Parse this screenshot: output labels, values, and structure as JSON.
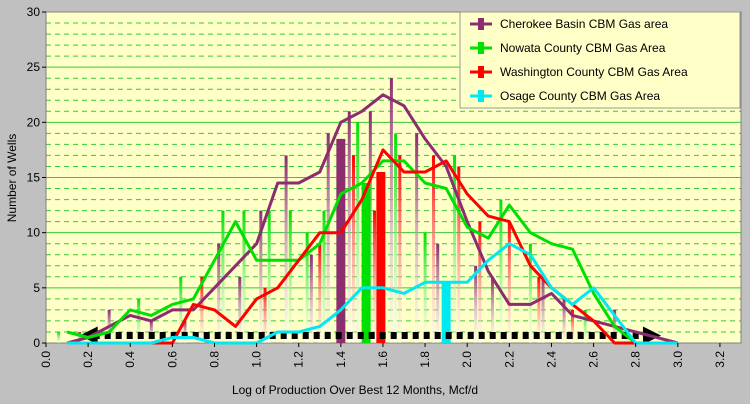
{
  "chart_data": {
    "type": "line",
    "xlabel": "Log of Production Over Best 12 Months, Mcf/d",
    "ylabel": "Number of Wells",
    "xlim": [
      0.0,
      3.3
    ],
    "ylim": [
      0,
      30
    ],
    "x_ticks": [
      "0.0",
      "0.2",
      "0.4",
      "0.6",
      "0.8",
      "1.0",
      "1.2",
      "1.4",
      "1.6",
      "1.8",
      "2.0",
      "2.2",
      "2.4",
      "2.6",
      "2.8",
      "3.0",
      "3.2"
    ],
    "y_ticks": [
      "0",
      "5",
      "10",
      "15",
      "20",
      "25",
      "30"
    ],
    "grid": "horizontal major solid green, minor dashed green",
    "legend_position": "top-right",
    "background_color": "#ffffc8",
    "series": [
      {
        "name": "Cherokee Basin CBM Gas area",
        "color": "#8b2d6e",
        "x": [
          0.1,
          0.2,
          0.3,
          0.4,
          0.5,
          0.6,
          0.7,
          0.8,
          0.9,
          1.0,
          1.1,
          1.2,
          1.3,
          1.4,
          1.5,
          1.6,
          1.7,
          1.8,
          1.9,
          2.0,
          2.1,
          2.2,
          2.3,
          2.4,
          2.5,
          2.6,
          2.7,
          2.8,
          2.9,
          3.0
        ],
        "y": [
          0,
          0.5,
          1.5,
          2.5,
          2,
          3,
          3,
          5,
          7,
          9,
          14.5,
          14.5,
          15.5,
          20,
          21,
          22.5,
          21.5,
          18.5,
          16,
          11,
          6.5,
          3.5,
          3.5,
          4.5,
          2.5,
          2,
          1.5,
          1,
          0.5,
          0
        ]
      },
      {
        "name": "Nowata County CBM Gas Area",
        "color": "#00e000",
        "x": [
          0.1,
          0.2,
          0.3,
          0.4,
          0.5,
          0.6,
          0.7,
          0.8,
          0.9,
          1.0,
          1.1,
          1.2,
          1.3,
          1.4,
          1.5,
          1.6,
          1.7,
          1.8,
          1.9,
          2.0,
          2.1,
          2.2,
          2.3,
          2.4,
          2.5,
          2.6,
          2.7,
          2.8,
          2.9,
          3.0
        ],
        "y": [
          1,
          0.5,
          1,
          3,
          2.5,
          3.5,
          4,
          7.5,
          11,
          7.5,
          7.5,
          7.5,
          9,
          13.5,
          14.5,
          16.5,
          16.5,
          14.5,
          14,
          10.5,
          9.5,
          12.5,
          10,
          9,
          8.5,
          4.5,
          1.5,
          0,
          0,
          0
        ]
      },
      {
        "name": "Washington County CBM Gas Area",
        "color": "#ff0000",
        "x": [
          0.1,
          0.2,
          0.3,
          0.4,
          0.5,
          0.6,
          0.7,
          0.8,
          0.9,
          1.0,
          1.1,
          1.2,
          1.3,
          1.4,
          1.5,
          1.6,
          1.7,
          1.8,
          1.9,
          2.0,
          2.1,
          2.2,
          2.3,
          2.4,
          2.5,
          2.6,
          2.7,
          2.8,
          2.9,
          3.0
        ],
        "y": [
          0,
          0,
          0,
          0,
          0,
          0,
          3.5,
          3,
          1.5,
          4,
          5,
          7.5,
          10,
          10,
          13,
          17.5,
          15.5,
          15.5,
          16.5,
          13.5,
          11.5,
          11,
          7,
          5,
          3.5,
          2,
          0,
          0,
          0,
          0
        ]
      },
      {
        "name": "Osage County CBM Gas Area",
        "color": "#00e8f0",
        "x": [
          0.1,
          0.2,
          0.3,
          0.4,
          0.5,
          0.6,
          0.7,
          0.8,
          0.9,
          1.0,
          1.1,
          1.2,
          1.3,
          1.4,
          1.5,
          1.6,
          1.7,
          1.8,
          1.9,
          2.0,
          2.1,
          2.2,
          2.3,
          2.4,
          2.5,
          2.6,
          2.7,
          2.8,
          2.9,
          3.0
        ],
        "y": [
          0,
          0,
          0,
          0,
          0,
          0.5,
          0.5,
          0,
          0,
          0,
          1,
          1,
          1.5,
          3,
          5,
          5,
          4.5,
          5.5,
          5.5,
          5.5,
          7.5,
          9,
          8,
          5,
          3.5,
          5,
          2.5,
          0,
          0,
          0
        ]
      }
    ],
    "histogram_bars": [
      {
        "x": 0.06,
        "y": 1,
        "color": "#00e000"
      },
      {
        "x": 0.16,
        "y": 1,
        "color": "#8b2d6e"
      },
      {
        "x": 0.3,
        "y": 3,
        "color": "#8b2d6e"
      },
      {
        "x": 0.44,
        "y": 4,
        "color": "#00e000"
      },
      {
        "x": 0.5,
        "y": 2,
        "color": "#8b2d6e"
      },
      {
        "x": 0.64,
        "y": 6,
        "color": "#00e000"
      },
      {
        "x": 0.66,
        "y": 2,
        "color": "#8b2d6e"
      },
      {
        "x": 0.74,
        "y": 6,
        "color": "#ff0000"
      },
      {
        "x": 0.82,
        "y": 9,
        "color": "#8b2d6e"
      },
      {
        "x": 0.84,
        "y": 12,
        "color": "#00e000"
      },
      {
        "x": 0.92,
        "y": 6,
        "color": "#8b2d6e"
      },
      {
        "x": 0.94,
        "y": 12,
        "color": "#00e000"
      },
      {
        "x": 1.02,
        "y": 12,
        "color": "#8b2d6e"
      },
      {
        "x": 1.04,
        "y": 5,
        "color": "#ff0000"
      },
      {
        "x": 1.06,
        "y": 12,
        "color": "#00e000"
      },
      {
        "x": 1.14,
        "y": 17,
        "color": "#8b2d6e"
      },
      {
        "x": 1.16,
        "y": 12,
        "color": "#00e000"
      },
      {
        "x": 1.24,
        "y": 10,
        "color": "#00e000"
      },
      {
        "x": 1.26,
        "y": 8,
        "color": "#8b2d6e"
      },
      {
        "x": 1.3,
        "y": 9,
        "color": "#ff0000"
      },
      {
        "x": 1.32,
        "y": 12,
        "color": "#00e000"
      },
      {
        "x": 1.34,
        "y": 19,
        "color": "#8b2d6e"
      },
      {
        "x": 1.44,
        "y": 21,
        "color": "#8b2d6e"
      },
      {
        "x": 1.46,
        "y": 17,
        "color": "#ff0000"
      },
      {
        "x": 1.48,
        "y": 20,
        "color": "#00e000"
      },
      {
        "x": 1.54,
        "y": 21,
        "color": "#8b2d6e"
      },
      {
        "x": 1.56,
        "y": 12,
        "color": "#ff0000"
      },
      {
        "x": 1.64,
        "y": 24,
        "color": "#8b2d6e"
      },
      {
        "x": 1.66,
        "y": 19,
        "color": "#00e000"
      },
      {
        "x": 1.68,
        "y": 17,
        "color": "#ff0000"
      },
      {
        "x": 1.76,
        "y": 19,
        "color": "#8b2d6e"
      },
      {
        "x": 1.8,
        "y": 10,
        "color": "#00e000"
      },
      {
        "x": 1.84,
        "y": 17,
        "color": "#ff0000"
      },
      {
        "x": 1.86,
        "y": 9,
        "color": "#8b2d6e"
      },
      {
        "x": 1.94,
        "y": 17,
        "color": "#00e000"
      },
      {
        "x": 1.96,
        "y": 16,
        "color": "#ff0000"
      },
      {
        "x": 2.04,
        "y": 7,
        "color": "#8b2d6e"
      },
      {
        "x": 2.06,
        "y": 11,
        "color": "#ff0000"
      },
      {
        "x": 2.12,
        "y": 6,
        "color": "#8b2d6e"
      },
      {
        "x": 2.16,
        "y": 13,
        "color": "#00e000"
      },
      {
        "x": 2.2,
        "y": 11,
        "color": "#ff0000"
      },
      {
        "x": 2.3,
        "y": 9,
        "color": "#00e000"
      },
      {
        "x": 2.34,
        "y": 6,
        "color": "#ff0000"
      },
      {
        "x": 2.36,
        "y": 6,
        "color": "#8b2d6e"
      },
      {
        "x": 2.46,
        "y": 4,
        "color": "#8b2d6e"
      },
      {
        "x": 2.5,
        "y": 3,
        "color": "#ff0000"
      },
      {
        "x": 2.56,
        "y": 3,
        "color": "#00e000"
      },
      {
        "x": 2.7,
        "y": 3,
        "color": "#8b2d6e"
      },
      {
        "x": 2.76,
        "y": 1,
        "color": "#00e000"
      }
    ],
    "thick_bars": [
      {
        "x": 1.4,
        "y": 18.5,
        "color": "#8b2d6e"
      },
      {
        "x": 1.52,
        "y": 14.5,
        "color": "#00e000"
      },
      {
        "x": 1.59,
        "y": 15.5,
        "color": "#ff0000"
      },
      {
        "x": 1.9,
        "y": 5.5,
        "color": "#00e8f0"
      }
    ],
    "range_arrow": {
      "x_start": 0.16,
      "x_end": 2.92,
      "y": 0.5
    },
    "legend": [
      {
        "label": "Cherokee Basin CBM Gas area",
        "color": "#8b2d6e"
      },
      {
        "label": "Nowata County CBM Gas Area",
        "color": "#00e000"
      },
      {
        "label": "Washington County CBM Gas Area",
        "color": "#ff0000"
      },
      {
        "label": "Osage County CBM Gas Area",
        "color": "#00e8f0"
      }
    ]
  }
}
